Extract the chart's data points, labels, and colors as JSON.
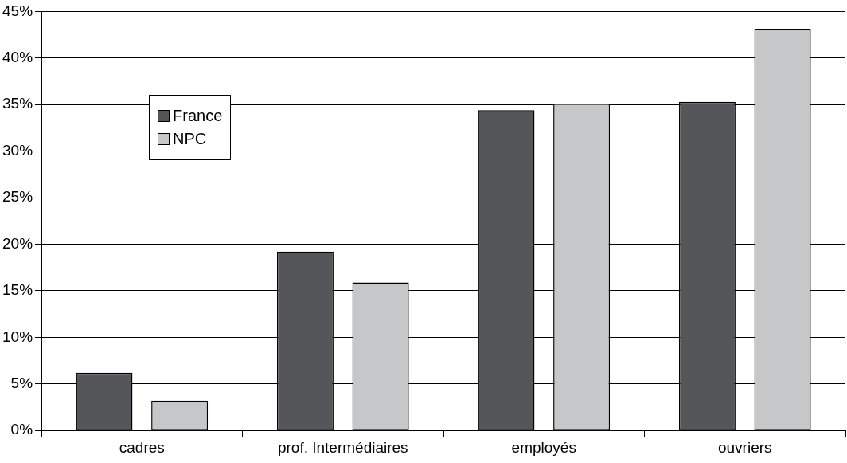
{
  "chart_data": {
    "type": "bar",
    "categories": [
      "cadres",
      "prof. Intermédiaires",
      "employés",
      "ouvriers"
    ],
    "series": [
      {
        "name": "France",
        "color": "#555659",
        "values": [
          6.2,
          19.2,
          34.4,
          35.3
        ]
      },
      {
        "name": "NPC",
        "color": "#c6c7c9",
        "values": [
          3.2,
          15.9,
          35.1,
          43.1
        ]
      }
    ],
    "ylim": [
      0,
      45
    ],
    "yticks": [
      {
        "value": 0,
        "label": "0%"
      },
      {
        "value": 5,
        "label": "5%"
      },
      {
        "value": 10,
        "label": "10%"
      },
      {
        "value": 15,
        "label": "15%"
      },
      {
        "value": 20,
        "label": "20%"
      },
      {
        "value": 25,
        "label": "25%"
      },
      {
        "value": 30,
        "label": "30%"
      },
      {
        "value": 35,
        "label": "35%"
      },
      {
        "value": 40,
        "label": "40%"
      },
      {
        "value": 45,
        "label": "45%"
      }
    ],
    "grid": "y",
    "legend": "top left"
  }
}
